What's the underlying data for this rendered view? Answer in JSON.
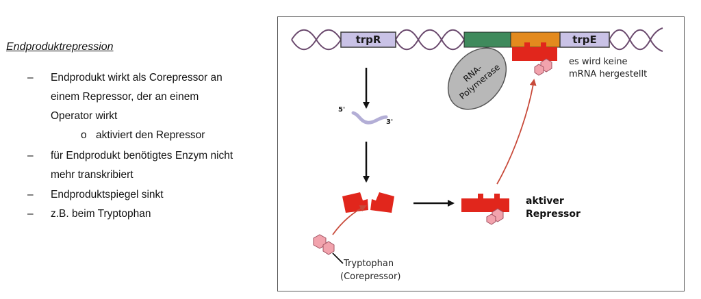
{
  "left": {
    "heading": "Endproduktrepression",
    "bullets": [
      {
        "dash": "–",
        "lines": [
          "Endprodukt wirkt als Corepressor an",
          "einem Repressor, der an einem",
          "Operator wirkt"
        ]
      },
      {
        "dash": "–",
        "lines": [
          "für Endprodukt benötigtes Enzym nicht",
          "mehr transkribiert"
        ]
      },
      {
        "dash": "–",
        "lines": [
          "Endproduktspiegel sinkt"
        ]
      },
      {
        "dash": "–",
        "lines": [
          "z.B. beim Tryptophan"
        ]
      }
    ],
    "sub_bullet": {
      "marker": "o",
      "text": "aktiviert den Repressor"
    }
  },
  "diagram": {
    "gene_trpR": "trpR",
    "gene_trpE": "trpE",
    "polymerase_line1": "RNA-",
    "polymerase_line2": "Polymerase",
    "mrna_5": "5'",
    "mrna_3": "3'",
    "no_mrna_line1": "es wird keine",
    "no_mrna_line2": "mRNA hergestellt",
    "active_line1": "aktiver",
    "active_line2": "Repressor",
    "trp_line1": "Tryptophan",
    "trp_line2": "(Corepressor)",
    "colors": {
      "dna_strand": "#6b4a6e",
      "gene_box": "#c9c2e6",
      "promoter": "#3f8a5c",
      "operator": "#e38a1e",
      "repressor": "#e1261c",
      "tryptophan": "#f2a3ad",
      "polymerase": "#b8b8b8",
      "arrow_red": "#c84a3a"
    }
  }
}
